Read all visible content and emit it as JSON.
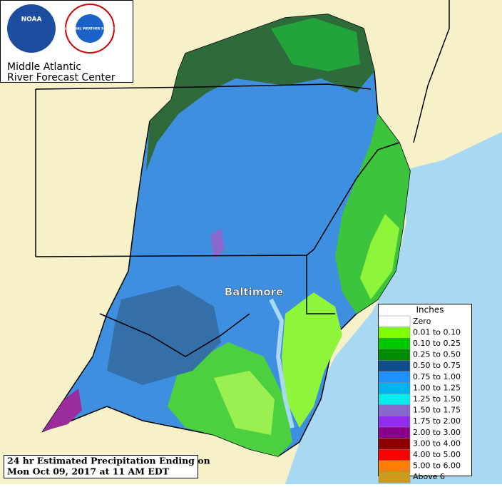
{
  "header": {
    "logos": [
      "NOAA",
      "NATIONAL WEATHER SERVICE"
    ],
    "title_lines": [
      "Middle Atlantic",
      "River Forecast Center"
    ]
  },
  "map": {
    "labels": [
      "Baltimore"
    ]
  },
  "legend": {
    "title": "Inches",
    "items": [
      {
        "label": "Zero",
        "color": "#ffffff"
      },
      {
        "label": "0.01 to 0.10",
        "color": "#7fff00"
      },
      {
        "label": "0.10 to 0.25",
        "color": "#00c800"
      },
      {
        "label": "0.25 to 0.50",
        "color": "#008b00"
      },
      {
        "label": "0.50 to 0.75",
        "color": "#104e8b"
      },
      {
        "label": "0.75 to 1.00",
        "color": "#1e90ff"
      },
      {
        "label": "1.00 to 1.25",
        "color": "#00b2ee"
      },
      {
        "label": "1.25 to 1.50",
        "color": "#00eeee"
      },
      {
        "label": "1.50 to 1.75",
        "color": "#8968cd"
      },
      {
        "label": "1.75 to 2.00",
        "color": "#912cee"
      },
      {
        "label": "2.00 to 3.00",
        "color": "#8b008b"
      },
      {
        "label": "3.00 to 4.00",
        "color": "#8b0000"
      },
      {
        "label": "4.00 to 5.00",
        "color": "#ff0000"
      },
      {
        "label": "5.00 to 6.00",
        "color": "#ff7f00"
      },
      {
        "label": "Above 6",
        "color": "#cd9b1d"
      }
    ]
  },
  "caption": {
    "lines": [
      "24 hr Estimated Precipitation Ending on",
      "Mon Oct 09, 2017 at 11 AM EDT"
    ]
  }
}
